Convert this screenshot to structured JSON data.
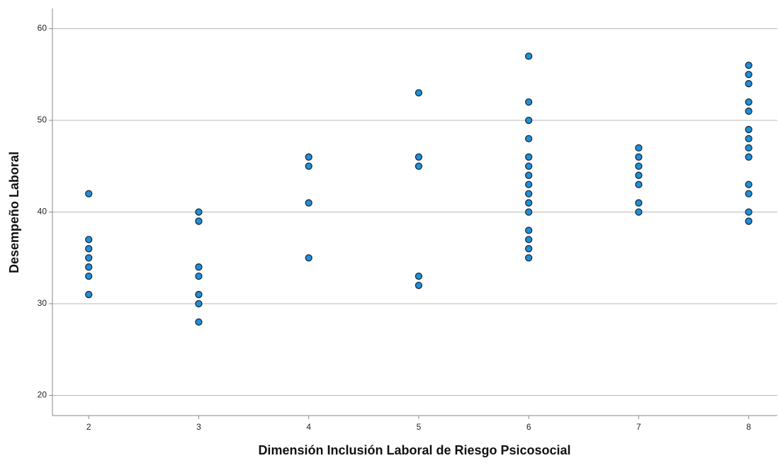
{
  "chart_data": {
    "type": "scatter",
    "x_label": "Dimensión Inclusión Laboral de Riesgo Psicosocial",
    "y_label": "Desempeño Laboral",
    "x": [
      2,
      2,
      2,
      2,
      2,
      2,
      2,
      3,
      3,
      3,
      3,
      3,
      3,
      3,
      4,
      4,
      4,
      4,
      5,
      5,
      5,
      5,
      5,
      6,
      6,
      6,
      6,
      6,
      6,
      6,
      6,
      6,
      6,
      6,
      6,
      6,
      6,
      6,
      7,
      7,
      7,
      7,
      7,
      7,
      7,
      8,
      8,
      8,
      8,
      8,
      8,
      8,
      8,
      8,
      8,
      8,
      8,
      8
    ],
    "y": [
      42,
      37,
      36,
      35,
      34,
      33,
      31,
      40,
      39,
      34,
      33,
      31,
      30,
      28,
      46,
      45,
      41,
      35,
      53,
      46,
      45,
      33,
      32,
      57,
      52,
      50,
      48,
      46,
      45,
      44,
      43,
      42,
      41,
      40,
      38,
      37,
      36,
      35,
      47,
      46,
      45,
      44,
      43,
      41,
      40,
      56,
      55,
      54,
      52,
      51,
      49,
      48,
      47,
      46,
      43,
      42,
      40,
      39
    ],
    "color": "#1f8fd8",
    "xlim": [
      1.67,
      8.26
    ],
    "ylim": [
      17.8,
      62.2
    ],
    "xticks": [
      2,
      3,
      4,
      5,
      6,
      7,
      8
    ],
    "yticks": [
      20,
      30,
      40,
      50,
      60
    ],
    "grid": true
  }
}
